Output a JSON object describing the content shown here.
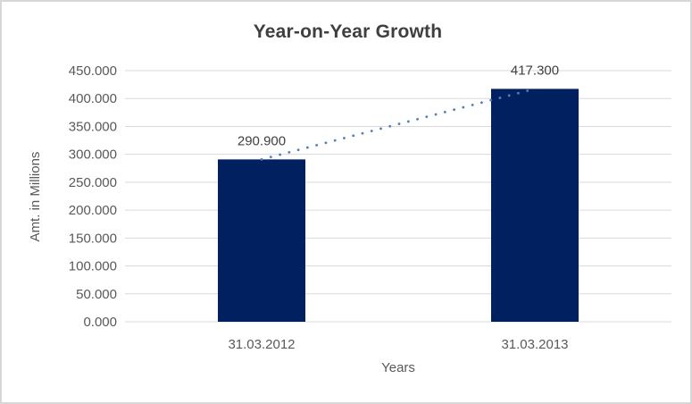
{
  "chart_data": {
    "type": "bar",
    "title": "Year-on-Year Growth",
    "xlabel": "Years",
    "ylabel": "Amt. in Millions",
    "categories": [
      "31.03.2012",
      "31.03.2013"
    ],
    "values": [
      290.9,
      417.3
    ],
    "data_labels": [
      "290.900",
      "417.300"
    ],
    "ylim": [
      0,
      450
    ],
    "y_ticks": [
      0,
      50,
      100,
      150,
      200,
      250,
      300,
      350,
      400,
      450
    ],
    "y_tick_labels": [
      "0.000",
      "50.000",
      "100.000",
      "150.000",
      "200.000",
      "250.000",
      "300.000",
      "350.000",
      "400.000",
      "450.000"
    ],
    "grid": true,
    "legend": false,
    "colors": {
      "bar": "#002060",
      "trendline": "#4f81bd",
      "gridline": "#d9d9d9",
      "tick_label": "#595959",
      "data_label": "#404040"
    },
    "trendline": {
      "style": "dotted",
      "connects": "bar tops (series values)"
    }
  }
}
